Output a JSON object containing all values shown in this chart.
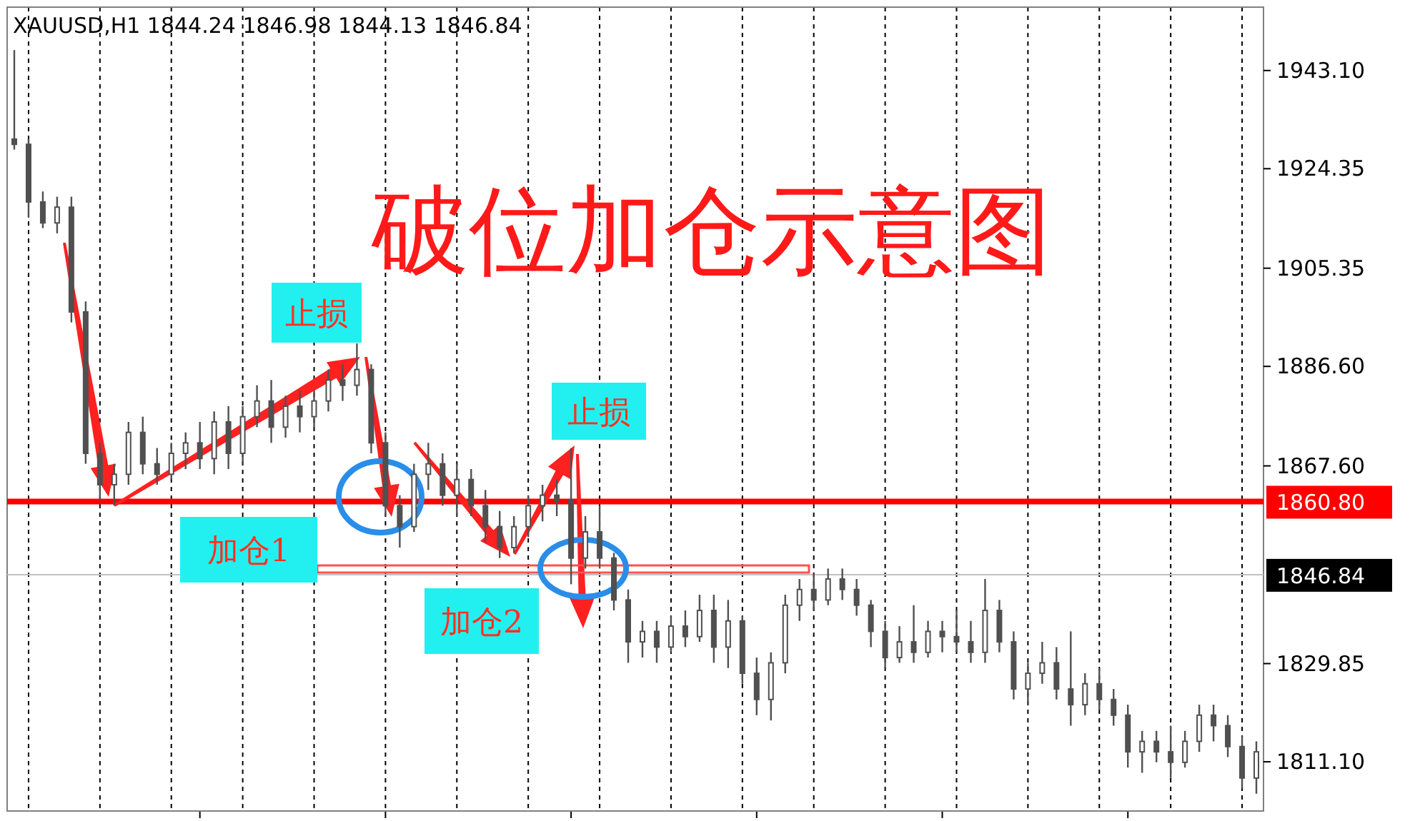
{
  "chart_data": {
    "type": "candlestick",
    "title": "破位加仓示意图",
    "subtitle": "XAUUSD,H1  1844.24 1846.98 1844.13 1846.84",
    "categories": [
      null,
      null,
      null,
      null,
      null,
      null,
      null,
      null,
      null,
      null,
      null,
      null,
      null,
      null,
      null,
      null,
      null,
      null,
      null,
      null,
      null,
      null,
      null,
      null,
      null,
      null,
      null,
      null,
      null,
      null,
      null,
      null,
      null,
      null,
      null,
      null,
      null,
      null,
      null,
      null,
      null,
      null,
      null,
      null,
      null,
      null,
      null,
      null,
      null,
      null,
      null,
      null,
      null,
      null,
      null,
      null,
      null,
      null,
      null,
      null,
      null,
      null,
      null,
      null,
      null,
      null,
      null,
      null,
      null,
      null,
      null,
      null,
      null,
      null,
      null,
      null,
      null,
      null,
      null,
      null,
      null,
      null,
      null,
      null,
      null,
      null,
      null,
      null
    ],
    "ohlc": [
      [
        1930,
        1947,
        1928,
        1929
      ],
      [
        1929,
        1930,
        1915,
        1918
      ],
      [
        1918,
        1920,
        1913,
        1914
      ],
      [
        1914,
        1919,
        1912,
        1917
      ],
      [
        1917,
        1919,
        1895,
        1897
      ],
      [
        1897,
        1899,
        1868,
        1870
      ],
      [
        1870,
        1872,
        1861,
        1864
      ],
      [
        1864,
        1868,
        1860,
        1866
      ],
      [
        1866,
        1876,
        1864,
        1874
      ],
      [
        1874,
        1877,
        1866,
        1868
      ],
      [
        1868,
        1871,
        1864,
        1866
      ],
      [
        1866,
        1872,
        1865,
        1870
      ],
      [
        1870,
        1874,
        1867,
        1872
      ],
      [
        1872,
        1876,
        1867,
        1869
      ],
      [
        1869,
        1878,
        1866,
        1876
      ],
      [
        1876,
        1879,
        1867,
        1870
      ],
      [
        1870,
        1879,
        1868,
        1877
      ],
      [
        1877,
        1883,
        1875,
        1880
      ],
      [
        1880,
        1884,
        1872,
        1875
      ],
      [
        1875,
        1881,
        1873,
        1879
      ],
      [
        1879,
        1882,
        1874,
        1877
      ],
      [
        1877,
        1882,
        1875,
        1880
      ],
      [
        1880,
        1886,
        1878,
        1884
      ],
      [
        1884,
        1887,
        1880,
        1883
      ],
      [
        1883,
        1891,
        1881,
        1886
      ],
      [
        1886,
        1887,
        1870,
        1872
      ],
      [
        1872,
        1874,
        1858,
        1860
      ],
      [
        1860,
        1862,
        1852,
        1856
      ],
      [
        1856,
        1868,
        1855,
        1866
      ],
      [
        1866,
        1872,
        1863,
        1868
      ],
      [
        1868,
        1870,
        1860,
        1862
      ],
      [
        1862,
        1868,
        1858,
        1865
      ],
      [
        1865,
        1867,
        1858,
        1860
      ],
      [
        1860,
        1863,
        1853,
        1856
      ],
      [
        1856,
        1859,
        1850,
        1852
      ],
      [
        1852,
        1858,
        1851,
        1856
      ],
      [
        1856,
        1862,
        1854,
        1860
      ],
      [
        1860,
        1864,
        1857,
        1862
      ],
      [
        1862,
        1865,
        1858,
        1861
      ],
      [
        1861,
        1871,
        1845,
        1850
      ],
      [
        1850,
        1858,
        1848,
        1855
      ],
      [
        1855,
        1860,
        1848,
        1850
      ],
      [
        1850,
        1851,
        1840,
        1842
      ],
      [
        1842,
        1844,
        1830,
        1834
      ],
      [
        1834,
        1838,
        1831,
        1836
      ],
      [
        1836,
        1838,
        1830,
        1833
      ],
      [
        1833,
        1839,
        1832,
        1837
      ],
      [
        1837,
        1840,
        1833,
        1835
      ],
      [
        1835,
        1843,
        1834,
        1840
      ],
      [
        1840,
        1843,
        1830,
        1833
      ],
      [
        1833,
        1842,
        1829,
        1838
      ],
      [
        1838,
        1839,
        1826,
        1828
      ],
      [
        1828,
        1831,
        1820,
        1823
      ],
      [
        1823,
        1832,
        1819,
        1830
      ],
      [
        1830,
        1843,
        1828,
        1841
      ],
      [
        1841,
        1846,
        1838,
        1844
      ],
      [
        1844,
        1847,
        1840,
        1842
      ],
      [
        1842,
        1848,
        1841,
        1846
      ],
      [
        1846,
        1848,
        1842,
        1844
      ],
      [
        1844,
        1846,
        1839,
        1841
      ],
      [
        1841,
        1842,
        1833,
        1836
      ],
      [
        1836,
        1838,
        1829,
        1831
      ],
      [
        1831,
        1837,
        1830,
        1834
      ],
      [
        1834,
        1841,
        1830,
        1832
      ],
      [
        1832,
        1838,
        1831,
        1836
      ],
      [
        1836,
        1838,
        1832,
        1835
      ],
      [
        1835,
        1840,
        1832,
        1834
      ],
      [
        1834,
        1838,
        1830,
        1832
      ],
      [
        1832,
        1846,
        1830,
        1840
      ],
      [
        1840,
        1842,
        1832,
        1834
      ],
      [
        1834,
        1836,
        1823,
        1825
      ],
      [
        1825,
        1830,
        1822,
        1828
      ],
      [
        1828,
        1834,
        1826,
        1830
      ],
      [
        1830,
        1833,
        1823,
        1825
      ],
      [
        1825,
        1836,
        1818,
        1822
      ],
      [
        1822,
        1828,
        1820,
        1826
      ],
      [
        1826,
        1829,
        1821,
        1823
      ],
      [
        1823,
        1825,
        1818,
        1820
      ],
      [
        1820,
        1822,
        1810,
        1813
      ],
      [
        1813,
        1817,
        1809,
        1815
      ],
      [
        1815,
        1817,
        1811,
        1813
      ],
      [
        1813,
        1818,
        1808,
        1811
      ],
      [
        1811,
        1817,
        1810,
        1815
      ],
      [
        1815,
        1822,
        1813,
        1820
      ],
      [
        1820,
        1822,
        1815,
        1818
      ],
      [
        1818,
        1820,
        1812,
        1814
      ],
      [
        1814,
        1816,
        1806,
        1808
      ],
      [
        1808,
        1815,
        1805,
        1813
      ]
    ],
    "ylim": [
      1801.7,
      1955.2
    ],
    "yticks": [
      {
        "value": 1943.1,
        "label": "1943.10"
      },
      {
        "value": 1924.35,
        "label": "1924.35"
      },
      {
        "value": 1905.35,
        "label": "1905.35"
      },
      {
        "value": 1886.6,
        "label": "1886.60"
      },
      {
        "value": 1867.6,
        "label": "1867.60"
      },
      {
        "value": 1829.85,
        "label": "1829.85"
      },
      {
        "value": 1811.1,
        "label": "1811.10"
      }
    ],
    "tick_labels": "y",
    "grid": "x",
    "color": "#505050",
    "ref_lines": [
      {
        "axis": "y",
        "value": 1860.8,
        "label": "1860.80",
        "color": "#ff0000"
      },
      {
        "axis": "y",
        "value": 1846.84,
        "label": "1846.84",
        "color": "#c0c0c0"
      }
    ],
    "annotations": [
      "止损",
      "止损",
      "加仓1",
      "加仓2"
    ]
  }
}
